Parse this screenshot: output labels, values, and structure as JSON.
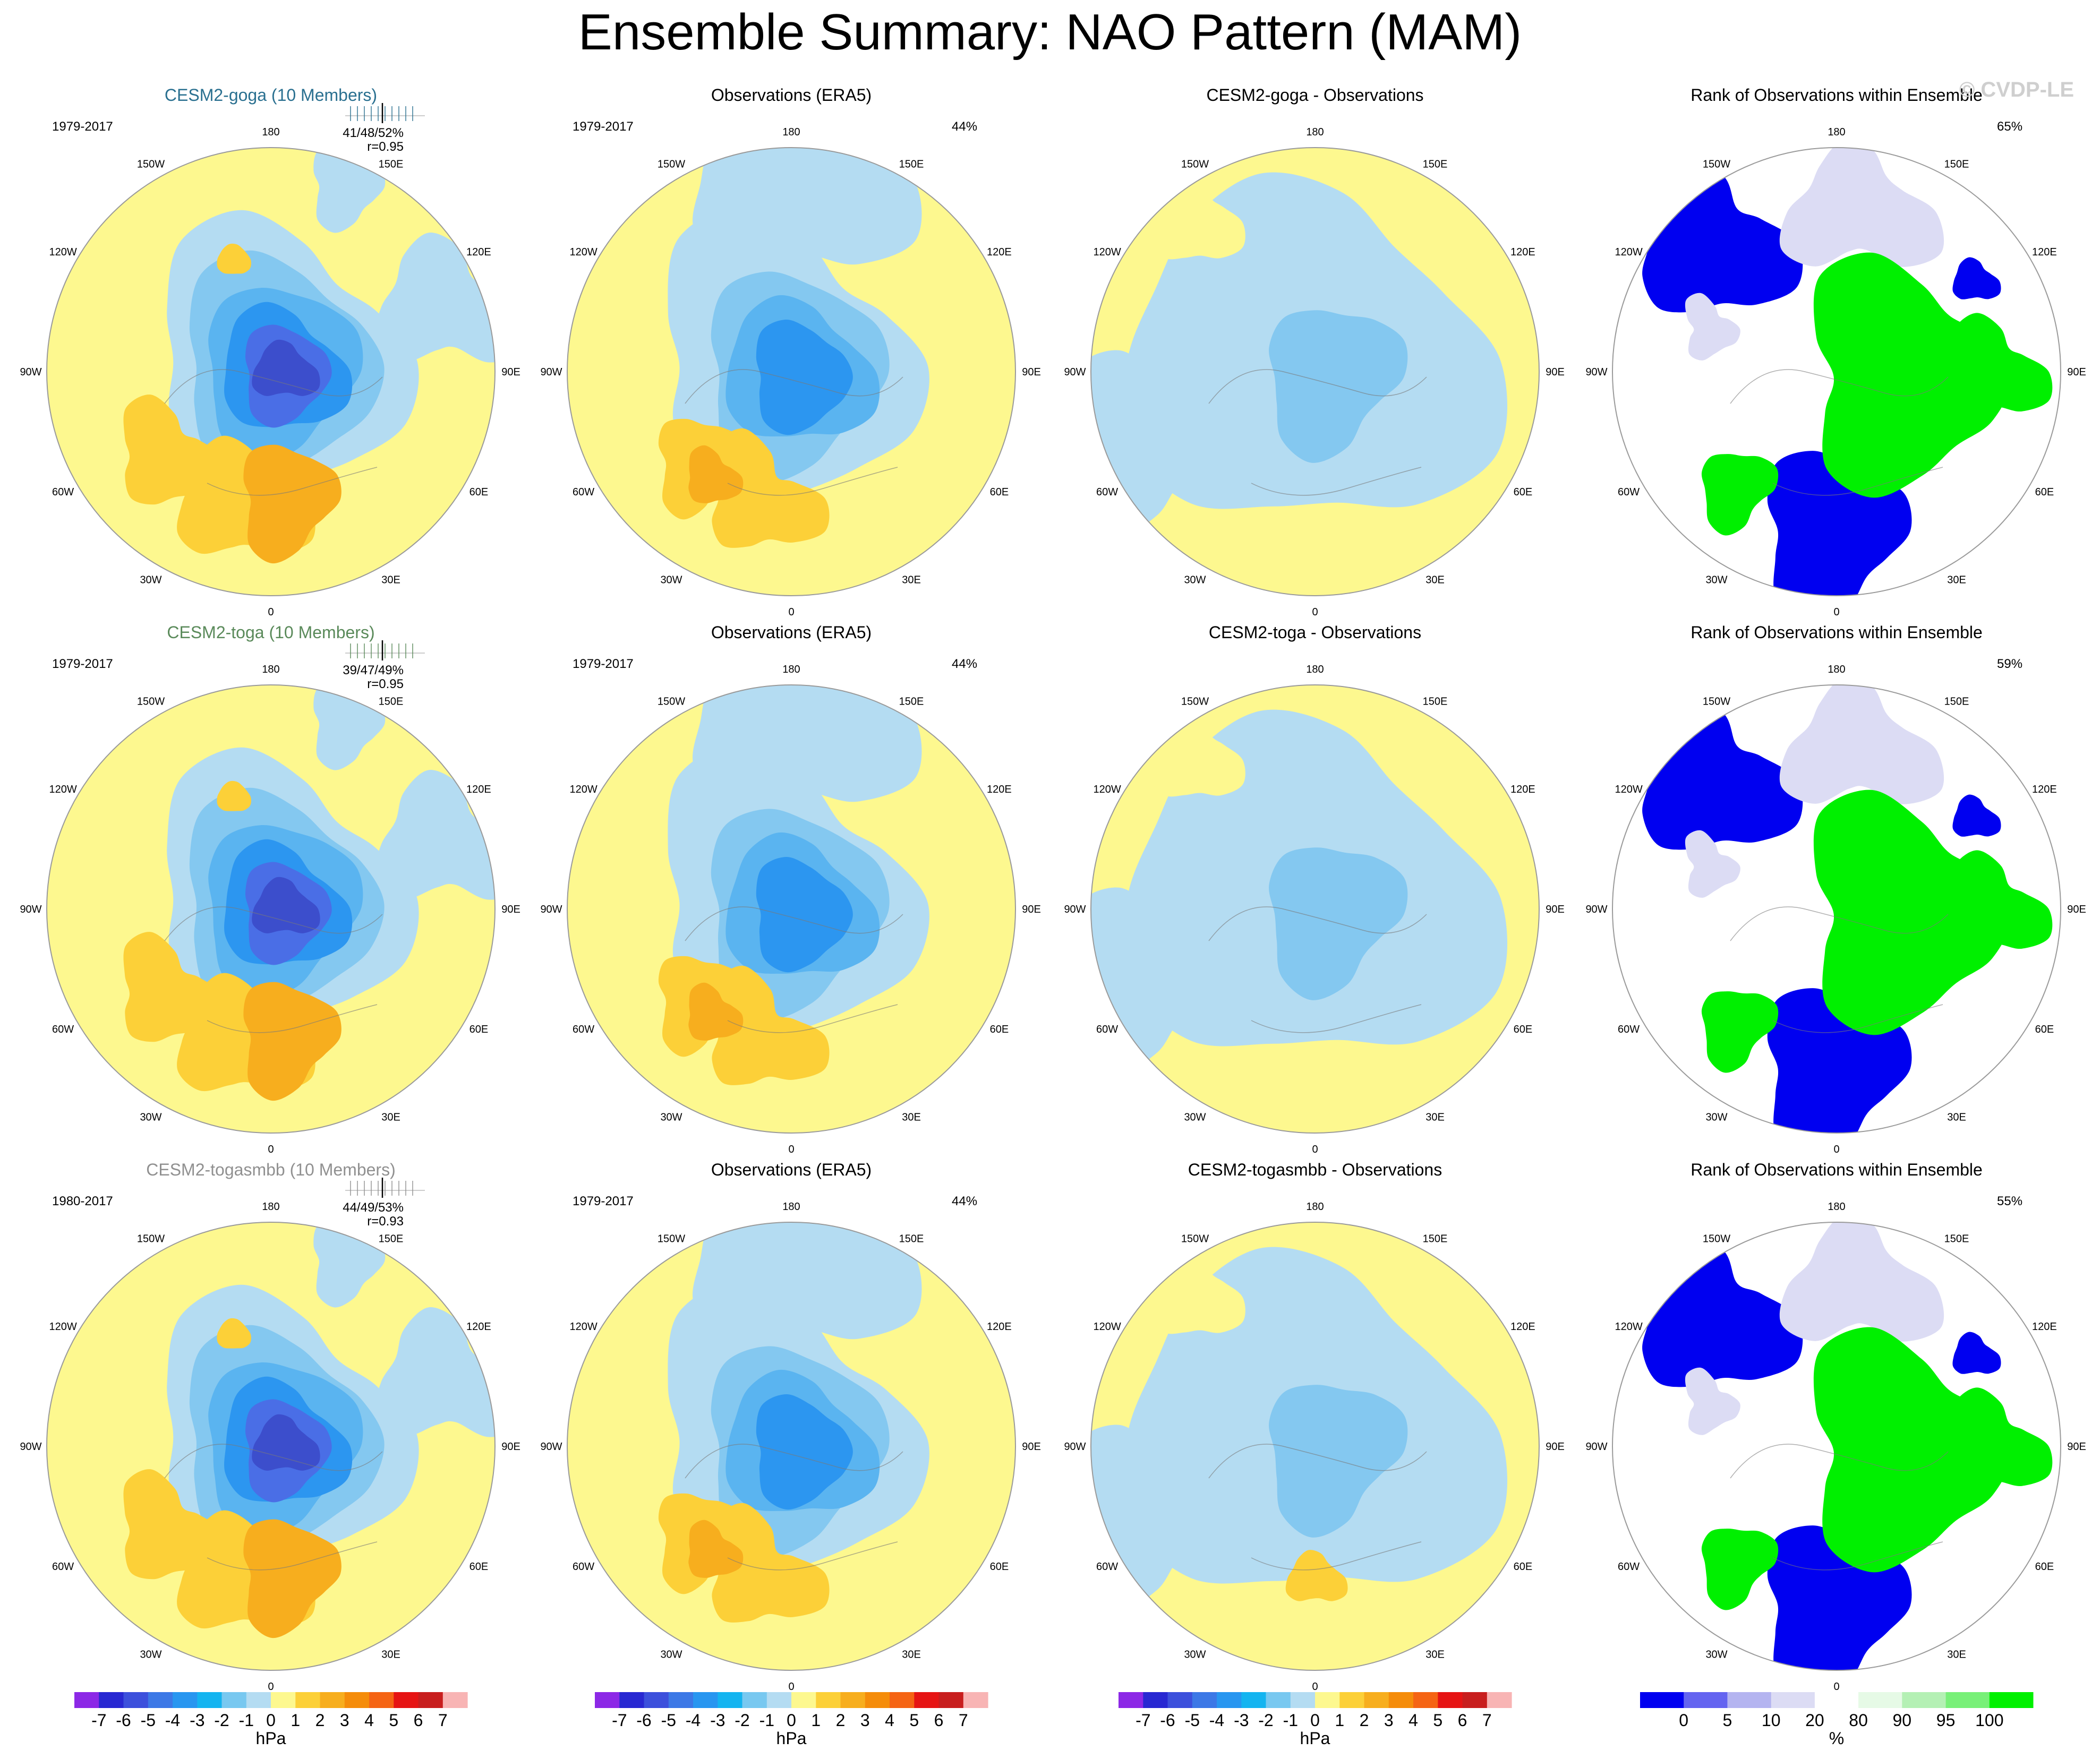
{
  "figure": {
    "title": "Ensemble Summary: NAO Pattern (MAM)",
    "watermark": "© CVDP-LE",
    "colors": {
      "yellow": "#fdf88f",
      "lightblue": "#b4dcf2",
      "blue2": "#84c8f0",
      "blue3": "#5ab4f0",
      "blue4": "#2c96f0",
      "blue5": "#4a6ee6",
      "blue6": "#3c4ecc",
      "orange1": "#fcd038",
      "orange2": "#f7ae1e",
      "orange3": "#f58c0a",
      "rank_low": "#0000f0",
      "rank_high": "#00f000",
      "rank_mid_low": "#dcdcf4",
      "rank_mid_high": "#e6fae6",
      "coast": "#7a7a7a",
      "rim": "#9a9a9a",
      "title_goga": "#2a7090",
      "title_toga": "#5a8a5a",
      "title_togasmbb": "#909090"
    }
  },
  "rows": [
    {
      "panels": [
        {
          "title": "CESM2-goga (10 Members)",
          "period": "1979-2017",
          "stats": "41/48/52%",
          "corr": "r=0.95",
          "pct": ""
        },
        {
          "title": "Observations (ERA5)",
          "period": "1979-2017",
          "pct": "44%"
        },
        {
          "title": "CESM2-goga - Observations"
        },
        {
          "title": "Rank of Observations within Ensemble",
          "pct": "65%"
        }
      ]
    },
    {
      "panels": [
        {
          "title": "CESM2-toga (10 Members)",
          "period": "1979-2017",
          "stats": "39/47/49%",
          "corr": "r=0.95",
          "pct": ""
        },
        {
          "title": "Observations (ERA5)",
          "period": "1979-2017",
          "pct": "44%"
        },
        {
          "title": "CESM2-toga - Observations"
        },
        {
          "title": "Rank of Observations within Ensemble",
          "pct": "59%"
        }
      ]
    },
    {
      "panels": [
        {
          "title": "CESM2-togasmbb (10 Members)",
          "period": "1980-2017",
          "stats": "44/49/53%",
          "corr": "r=0.93",
          "pct": ""
        },
        {
          "title": "Observations (ERA5)",
          "period": "1979-2017",
          "pct": "44%"
        },
        {
          "title": "CESM2-togasmbb - Observations"
        },
        {
          "title": "Rank of Observations within Ensemble",
          "pct": "55%"
        }
      ]
    }
  ],
  "lon_labels": [
    "180",
    "150E",
    "120E",
    "90E",
    "60E",
    "30E",
    "0",
    "30W",
    "60W",
    "90W",
    "120W",
    "150W"
  ],
  "colorbar_hpa": {
    "unit": "hPa",
    "labels": [
      "-7",
      "-6",
      "-5",
      "-4",
      "-3",
      "-2",
      "-1",
      "0",
      "1",
      "2",
      "3",
      "4",
      "5",
      "6",
      "7"
    ],
    "colors": [
      "#8c28e6",
      "#2828d2",
      "#3c50dc",
      "#3c78e6",
      "#2896f0",
      "#14b4f0",
      "#78c8f0",
      "#b4dcf2",
      "#fdf88f",
      "#fcd038",
      "#f7ae1e",
      "#f58c0a",
      "#f56414",
      "#e61414",
      "#c81e1e",
      "#f8b4b4"
    ]
  },
  "colorbar_pct": {
    "unit": "%",
    "labels": [
      "0",
      "5",
      "10",
      "20",
      "80",
      "90",
      "95",
      "100"
    ],
    "colors": [
      "#0000f0",
      "#6464f0",
      "#b4b4f0",
      "#dcdcf4",
      "#ffffff",
      "#e6fae6",
      "#b4f0b4",
      "#78f078",
      "#00f000"
    ]
  }
}
